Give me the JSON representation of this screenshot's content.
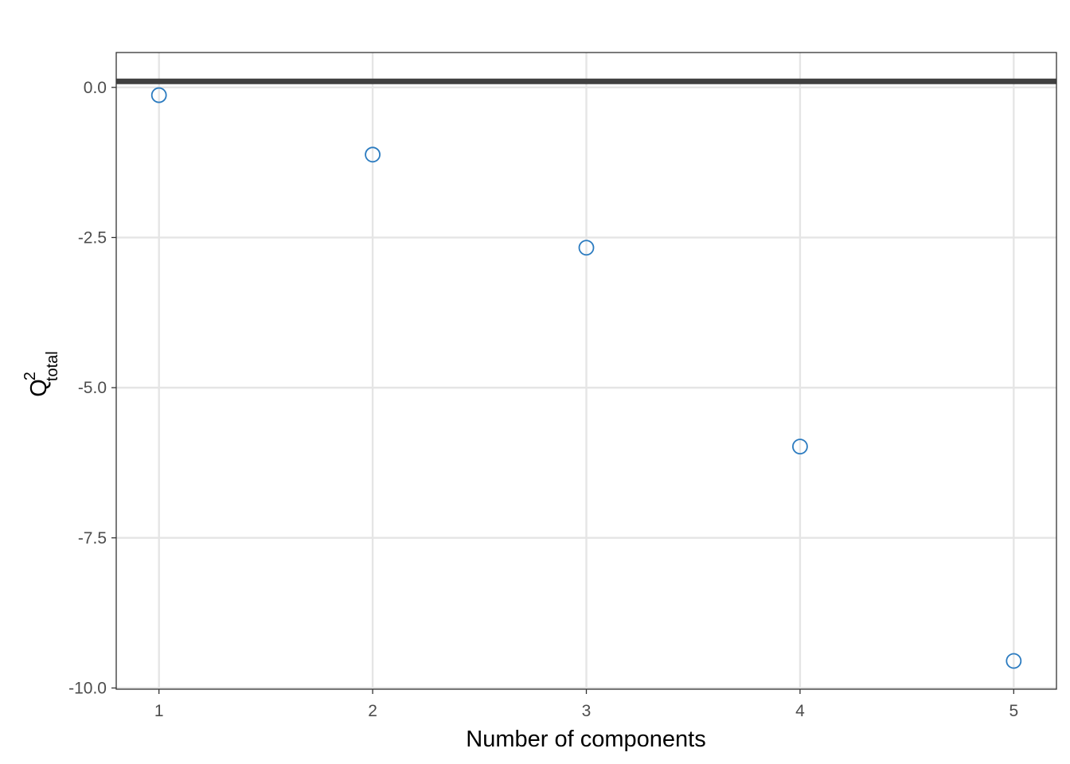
{
  "chart_data": {
    "type": "scatter",
    "xlabel": "Number of components",
    "ylabel": {
      "base": "Q",
      "superscript": "2",
      "subscript": "total"
    },
    "x_ticks": [
      1,
      2,
      3,
      4,
      5
    ],
    "y_ticks": [
      {
        "value": 0.0,
        "label": "0.0"
      },
      {
        "value": -2.5,
        "label": "-2.5"
      },
      {
        "value": -5.0,
        "label": "-5.0"
      },
      {
        "value": -7.5,
        "label": "-7.5"
      },
      {
        "value": -10.0,
        "label": "-10.0"
      }
    ],
    "xlim": [
      0.8,
      5.2
    ],
    "ylim": [
      -10.02,
      0.58
    ],
    "points": [
      {
        "x": 1,
        "y": -0.13
      },
      {
        "x": 2,
        "y": -1.12
      },
      {
        "x": 3,
        "y": -2.67
      },
      {
        "x": 4,
        "y": -5.98
      },
      {
        "x": 5,
        "y": -9.55
      }
    ],
    "reference_line": {
      "y": 0.1
    },
    "grid": true,
    "colors": {
      "points": "#2b7bc0",
      "reference_line": "#404040",
      "grid": "#e5e5e5",
      "panel_border": "#333333"
    }
  }
}
